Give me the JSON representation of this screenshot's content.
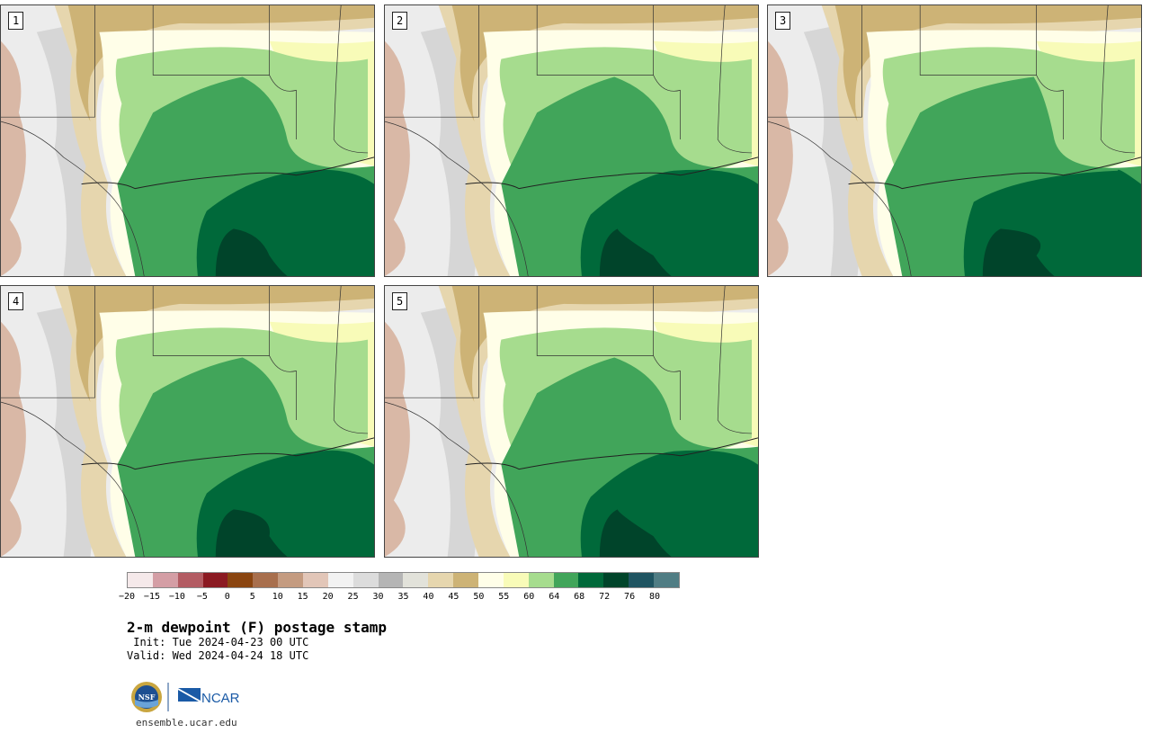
{
  "panels": [
    {
      "label": "1",
      "variant": 1
    },
    {
      "label": "2",
      "variant": 2
    },
    {
      "label": "3",
      "variant": 3
    },
    {
      "label": "4",
      "variant": 4
    },
    {
      "label": "5",
      "variant": 5
    }
  ],
  "colorbar": {
    "colors": [
      "#f5e9ea",
      "#d49ea5",
      "#b35c63",
      "#8b1a22",
      "#8a4510",
      "#a86f4d",
      "#c49b80",
      "#e2c6b8",
      "#f2f2f2",
      "#dcdcdc",
      "#b5b5b5",
      "#e2e2da",
      "#e6d6ae",
      "#cdb376",
      "#fffee8",
      "#f8fbb8",
      "#a6dc8e",
      "#41a55a",
      "#00693a",
      "#00442a",
      "#1f5461",
      "#507d84"
    ],
    "tick_labels": [
      "−20",
      "−15",
      "−10",
      "−5",
      "0",
      "5",
      "10",
      "15",
      "20",
      "25",
      "30",
      "35",
      "40",
      "45",
      "50",
      "55",
      "60",
      "64",
      "68",
      "72",
      "76",
      "80"
    ]
  },
  "title": "2-m dewpoint (F) postage stamp",
  "init_line": " Init: Tue 2024-04-23 00 UTC",
  "valid_line": "Valid: Wed 2024-04-24 18 UTC",
  "logo": {
    "nsf_text": "NSF",
    "ncar_text": "NCAR"
  },
  "website": "ensemble.ucar.edu"
}
